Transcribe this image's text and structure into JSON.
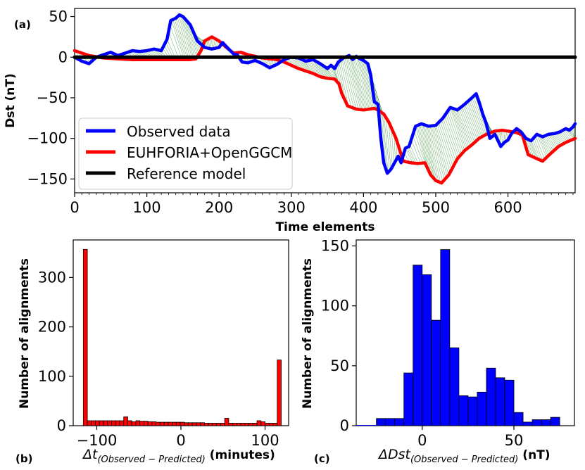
{
  "chart_data": [
    {
      "id": "a",
      "type": "line",
      "panel_label": "(a)",
      "xlabel": "Time elements",
      "ylabel": "Dst (nT)",
      "xlim": [
        0,
        693
      ],
      "ylim": [
        -167,
        60
      ],
      "xticks": [
        0,
        100,
        200,
        300,
        400,
        500,
        600
      ],
      "xtick_labels": [
        "0",
        "100",
        "200",
        "300",
        "400",
        "500",
        "600"
      ],
      "yticks": [
        50,
        0,
        -50,
        -100,
        -150
      ],
      "ytick_labels": [
        "50",
        "0",
        "−50",
        "−100",
        "−150"
      ],
      "legend": [
        "Observed data",
        "EUHFORIA+OpenGGCM",
        "Reference model"
      ],
      "legend_location": "lower-left",
      "series": [
        {
          "name": "Observed data",
          "color": "#0000ff",
          "points": [
            [
              0,
              0
            ],
            [
              10,
              -5
            ],
            [
              20,
              -8
            ],
            [
              30,
              0
            ],
            [
              40,
              3
            ],
            [
              50,
              6
            ],
            [
              60,
              2
            ],
            [
              70,
              5
            ],
            [
              80,
              8
            ],
            [
              90,
              7
            ],
            [
              100,
              8
            ],
            [
              110,
              10
            ],
            [
              120,
              8
            ],
            [
              128,
              22
            ],
            [
              133,
              45
            ],
            [
              140,
              48
            ],
            [
              145,
              52
            ],
            [
              150,
              50
            ],
            [
              160,
              40
            ],
            [
              170,
              20
            ],
            [
              180,
              12
            ],
            [
              190,
              10
            ],
            [
              200,
              12
            ],
            [
              205,
              18
            ],
            [
              210,
              13
            ],
            [
              220,
              4
            ],
            [
              225,
              3
            ],
            [
              232,
              -6
            ],
            [
              240,
              -7
            ],
            [
              250,
              -4
            ],
            [
              260,
              -8
            ],
            [
              270,
              -13
            ],
            [
              280,
              -9
            ],
            [
              290,
              -3
            ],
            [
              300,
              0
            ],
            [
              310,
              -1
            ],
            [
              320,
              -5
            ],
            [
              330,
              -3
            ],
            [
              340,
              -8
            ],
            [
              350,
              -14
            ],
            [
              355,
              -10
            ],
            [
              360,
              -14
            ],
            [
              365,
              -6
            ],
            [
              372,
              -1
            ],
            [
              380,
              2
            ],
            [
              385,
              -3
            ],
            [
              390,
              1
            ],
            [
              395,
              -2
            ],
            [
              400,
              -4
            ],
            [
              406,
              -8
            ],
            [
              410,
              -22
            ],
            [
              415,
              -55
            ],
            [
              420,
              -58
            ],
            [
              424,
              -100
            ],
            [
              428,
              -130
            ],
            [
              433,
              -143
            ],
            [
              438,
              -138
            ],
            [
              443,
              -130
            ],
            [
              448,
              -122
            ],
            [
              452,
              -130
            ],
            [
              458,
              -112
            ],
            [
              463,
              -110
            ],
            [
              472,
              -85
            ],
            [
              480,
              -82
            ],
            [
              490,
              -85
            ],
            [
              500,
              -84
            ],
            [
              510,
              -75
            ],
            [
              520,
              -62
            ],
            [
              530,
              -65
            ],
            [
              540,
              -58
            ],
            [
              550,
              -50
            ],
            [
              556,
              -45
            ],
            [
              560,
              -55
            ],
            [
              565,
              -70
            ],
            [
              570,
              -82
            ],
            [
              575,
              -100
            ],
            [
              582,
              -95
            ],
            [
              590,
              -110
            ],
            [
              595,
              -105
            ],
            [
              600,
              -102
            ],
            [
              605,
              -94
            ],
            [
              612,
              -88
            ],
            [
              618,
              -92
            ],
            [
              625,
              -100
            ],
            [
              632,
              -103
            ],
            [
              640,
              -95
            ],
            [
              648,
              -98
            ],
            [
              656,
              -95
            ],
            [
              665,
              -94
            ],
            [
              672,
              -92
            ],
            [
              680,
              -88
            ],
            [
              685,
              -90
            ],
            [
              690,
              -86
            ],
            [
              693,
              -82
            ]
          ]
        },
        {
          "name": "EUHFORIA+OpenGGCM",
          "color": "#ff0000",
          "points": [
            [
              0,
              8
            ],
            [
              20,
              2
            ],
            [
              40,
              -1
            ],
            [
              60,
              -2
            ],
            [
              80,
              -3
            ],
            [
              100,
              -3
            ],
            [
              120,
              -3
            ],
            [
              140,
              -3
            ],
            [
              160,
              -3
            ],
            [
              168,
              -2
            ],
            [
              175,
              8
            ],
            [
              180,
              20
            ],
            [
              190,
              25
            ],
            [
              200,
              20
            ],
            [
              210,
              12
            ],
            [
              220,
              5
            ],
            [
              230,
              6
            ],
            [
              240,
              3
            ],
            [
              250,
              1
            ],
            [
              260,
              -1
            ],
            [
              270,
              -2
            ],
            [
              280,
              -3
            ],
            [
              290,
              -6
            ],
            [
              300,
              -10
            ],
            [
              310,
              -14
            ],
            [
              320,
              -17
            ],
            [
              330,
              -20
            ],
            [
              340,
              -24
            ],
            [
              350,
              -26
            ],
            [
              360,
              -27
            ],
            [
              366,
              -33
            ],
            [
              370,
              -45
            ],
            [
              378,
              -60
            ],
            [
              390,
              -64
            ],
            [
              400,
              -65
            ],
            [
              415,
              -63
            ],
            [
              420,
              -65
            ],
            [
              428,
              -70
            ],
            [
              435,
              -80
            ],
            [
              445,
              -100
            ],
            [
              455,
              -128
            ],
            [
              465,
              -130
            ],
            [
              475,
              -131
            ],
            [
              485,
              -130
            ],
            [
              493,
              -145
            ],
            [
              500,
              -152
            ],
            [
              508,
              -155
            ],
            [
              518,
              -145
            ],
            [
              530,
              -125
            ],
            [
              540,
              -115
            ],
            [
              550,
              -108
            ],
            [
              560,
              -100
            ],
            [
              570,
              -95
            ],
            [
              582,
              -91
            ],
            [
              592,
              -90
            ],
            [
              600,
              -91
            ],
            [
              612,
              -93
            ],
            [
              620,
              -96
            ],
            [
              628,
              -120
            ],
            [
              640,
              -125
            ],
            [
              648,
              -128
            ],
            [
              660,
              -118
            ],
            [
              670,
              -110
            ],
            [
              680,
              -105
            ],
            [
              693,
              -100
            ]
          ]
        },
        {
          "name": "Reference model",
          "color": "#000000",
          "points": [
            [
              0,
              0
            ],
            [
              693,
              0
            ]
          ]
        }
      ]
    },
    {
      "id": "b",
      "type": "bar",
      "panel_label": "(b)",
      "ylabel": "Number of alignments",
      "xlabel_math": "Δt",
      "xlabel_sub": "(Observed − Predicted)",
      "xlabel_unit": " (minutes)",
      "xlim": [
        -128,
        128
      ],
      "ylim": [
        0,
        376
      ],
      "xticks": [
        -100,
        0,
        100
      ],
      "xtick_labels": [
        "−100",
        "0",
        "100"
      ],
      "yticks": [
        0,
        100,
        200,
        300
      ],
      "ytick_labels": [
        "0",
        "100",
        "200",
        "300"
      ],
      "color": "#ff0000",
      "bin_start": -116,
      "bin_width": 4.8,
      "values": [
        357,
        10,
        10,
        10,
        10,
        10,
        10,
        10,
        10,
        10,
        18,
        10,
        8,
        10,
        9,
        9,
        8,
        8,
        7,
        7,
        7,
        7,
        7,
        7,
        7,
        6,
        6,
        6,
        6,
        6,
        5,
        5,
        5,
        5,
        5,
        15,
        5,
        5,
        5,
        5,
        5,
        5,
        5,
        10,
        8,
        5,
        5,
        5,
        133
      ]
    },
    {
      "id": "c",
      "type": "bar",
      "panel_label": "(c)",
      "ylabel": "Number of alignments",
      "xlabel_math": "ΔDst",
      "xlabel_sub": "(Observed − Predicted)",
      "xlabel_unit": " (nT)",
      "xlim": [
        -36,
        83
      ],
      "ylim": [
        0,
        155
      ],
      "xticks": [
        0,
        50
      ],
      "xtick_labels": [
        "0",
        "50"
      ],
      "yticks": [
        0,
        50,
        100,
        150
      ],
      "ytick_labels": [
        "0",
        "50",
        "100",
        "150"
      ],
      "color": "#0000ff",
      "bin_start": -25,
      "bin_width": 5,
      "values": [
        6,
        6,
        6,
        44,
        134,
        126,
        88,
        147,
        65,
        25,
        24,
        28,
        48,
        40,
        38,
        11,
        3,
        5,
        5,
        7
      ]
    }
  ]
}
